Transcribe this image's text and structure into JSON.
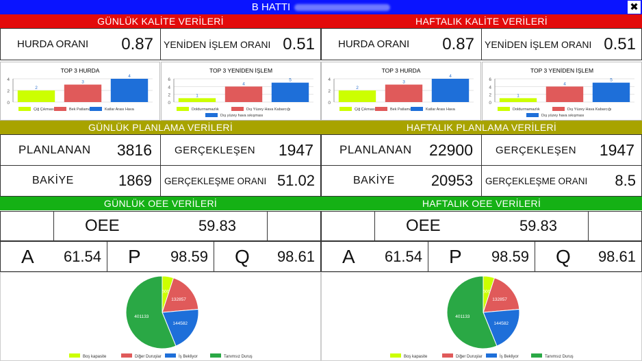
{
  "window": {
    "title": "B HATTI"
  },
  "daily": {
    "quality_header": "GÜNLÜK KALİTE VERİLERİ",
    "scrap_label": "HURDA ORANI",
    "scrap_value": "0.87",
    "rework_label": "YENİDEN İŞLEM ORANI",
    "rework_value": "0.51",
    "planning_header": "GÜNLÜK PLANLAMA VERİLERİ",
    "planned_label": "PLANLANAN",
    "planned_value": "3816",
    "realized_label": "GERÇEKLEŞEN",
    "realized_value": "1947",
    "balance_label": "BAKİYE",
    "balance_value": "1869",
    "realization_rate_label": "GERÇEKLEŞME ORANI",
    "realization_rate_value": "51.02",
    "oee_header": "GÜNLÜK OEE VERİLERİ",
    "oee_label": "OEE",
    "oee_value": "59.83",
    "a_label": "A",
    "a_value": "61.54",
    "p_label": "P",
    "p_value": "98.59",
    "q_label": "Q",
    "q_value": "98.61"
  },
  "weekly": {
    "quality_header": "HAFTALIK KALİTE VERİLERİ",
    "scrap_label": "HURDA ORANI",
    "scrap_value": "0.87",
    "rework_label": "YENİDEN İŞLEM ORANI",
    "rework_value": "0.51",
    "planning_header": "HAFTALIK PLANLAMA VERİLERİ",
    "planned_label": "PLANLANAN",
    "planned_value": "22900",
    "realized_label": "GERÇEKLEŞEN",
    "realized_value": "1947",
    "balance_label": "BAKİYE",
    "balance_value": "20953",
    "realization_rate_label": "GERÇEKLEŞME ORANI",
    "realization_rate_value": "8.5",
    "oee_header": "HAFTALIK OEE VERİLERİ",
    "oee_label": "OEE",
    "oee_value": "59.83",
    "a_label": "A",
    "a_value": "61.54",
    "p_label": "P",
    "p_value": "98.59",
    "q_label": "Q",
    "q_value": "98.61"
  },
  "colors": {
    "series1": "#ccff00",
    "series2": "#e05a5a",
    "series3": "#1e6fd9",
    "series4": "#2aa845",
    "title_bar": "#0a14ff"
  },
  "chart_data": [
    {
      "id": "daily_top3_scrap",
      "type": "bar",
      "title": "TOP 3 HURDA",
      "series": [
        {
          "name": "Çiğ Çıkması",
          "value": 2,
          "color": "#ccff00"
        },
        {
          "name": "Bek Patlaması",
          "value": 3,
          "color": "#e05a5a"
        },
        {
          "name": "Katlar Arası Hava",
          "value": 4,
          "color": "#1e6fd9"
        }
      ],
      "yticks": [
        0,
        2,
        4
      ],
      "ylim": [
        0,
        4
      ]
    },
    {
      "id": "daily_top3_rework",
      "type": "bar",
      "title": "TOP 3 YENİDEN İŞLEM",
      "series": [
        {
          "name": "Doldurmamazlık",
          "value": 1,
          "color": "#ccff00"
        },
        {
          "name": "Dış Yüzey Hava Kabarcığı",
          "value": 4,
          "color": "#e05a5a"
        },
        {
          "name": "Dış yüzey hava sıkışması",
          "value": 5,
          "color": "#1e6fd9"
        }
      ],
      "yticks": [
        0,
        2,
        4,
        6
      ],
      "ylim": [
        0,
        6
      ]
    },
    {
      "id": "weekly_top3_scrap",
      "type": "bar",
      "title": "TOP 3 HURDA",
      "series": [
        {
          "name": "Çiğ Çıkması",
          "value": 2,
          "color": "#ccff00"
        },
        {
          "name": "Bek Patlaması",
          "value": 3,
          "color": "#e05a5a"
        },
        {
          "name": "Katlar Arası Hava",
          "value": 4,
          "color": "#1e6fd9"
        }
      ],
      "yticks": [
        0,
        2,
        4
      ],
      "ylim": [
        0,
        4
      ]
    },
    {
      "id": "weekly_top3_rework",
      "type": "bar",
      "title": "TOP 3 YENİDEN İŞLEM",
      "series": [
        {
          "name": "Doldurmamazlık",
          "value": 1,
          "color": "#ccff00"
        },
        {
          "name": "Dış Yüzey Hava Kabarcığı",
          "value": 4,
          "color": "#e05a5a"
        },
        {
          "name": "Dış yüzey hava sıkışması",
          "value": 5,
          "color": "#1e6fd9"
        }
      ],
      "yticks": [
        0,
        2,
        4,
        6
      ],
      "ylim": [
        0,
        6
      ]
    },
    {
      "id": "daily_oee_pie",
      "type": "pie",
      "slices": [
        {
          "name": "Boş kapasite",
          "value": 36000,
          "color": "#ccff00"
        },
        {
          "name": "Diğer Duruşlar",
          "value": 132857,
          "color": "#e05a5a"
        },
        {
          "name": "İş Bekliyor",
          "value": 144582,
          "color": "#1e6fd9"
        },
        {
          "name": "Tanımsız Duruş",
          "value": 401133,
          "color": "#2aa845"
        }
      ]
    },
    {
      "id": "weekly_oee_pie",
      "type": "pie",
      "slices": [
        {
          "name": "Boş kapasite",
          "value": 36000,
          "color": "#ccff00"
        },
        {
          "name": "Diğer Duruşlar",
          "value": 132857,
          "color": "#e05a5a"
        },
        {
          "name": "İş Bekliyor",
          "value": 144582,
          "color": "#1e6fd9"
        },
        {
          "name": "Tanımsız Duruş",
          "value": 401133,
          "color": "#2aa845"
        }
      ]
    }
  ]
}
